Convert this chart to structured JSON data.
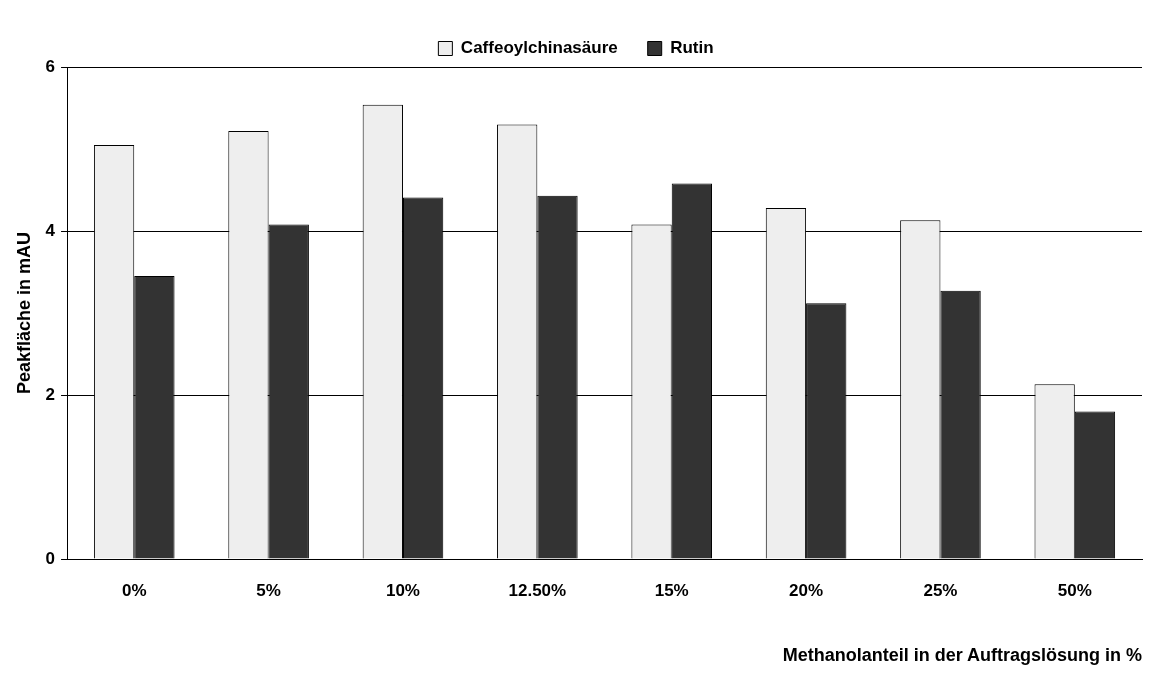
{
  "chart_data": {
    "type": "bar",
    "xlabel": "Methanolanteil in der Auftragslösung in %",
    "ylabel": "Peakfläche in mAU",
    "categories": [
      "0%",
      "5%",
      "10%",
      "12.50%",
      "15%",
      "20%",
      "25%",
      "50%"
    ],
    "series": [
      {
        "name": "Caffeoylchinasäure",
        "color": "#eeeeee",
        "values": [
          5.05,
          5.22,
          5.54,
          5.3,
          4.08,
          4.28,
          4.13,
          2.13
        ]
      },
      {
        "name": "Rutin",
        "color": "#333333",
        "values": [
          3.45,
          4.08,
          4.41,
          4.43,
          4.58,
          3.12,
          3.27,
          1.8
        ]
      }
    ],
    "ylim": [
      0,
      6
    ],
    "yticks": [
      0,
      2,
      4,
      6
    ],
    "grid": "y",
    "legend": "top"
  }
}
